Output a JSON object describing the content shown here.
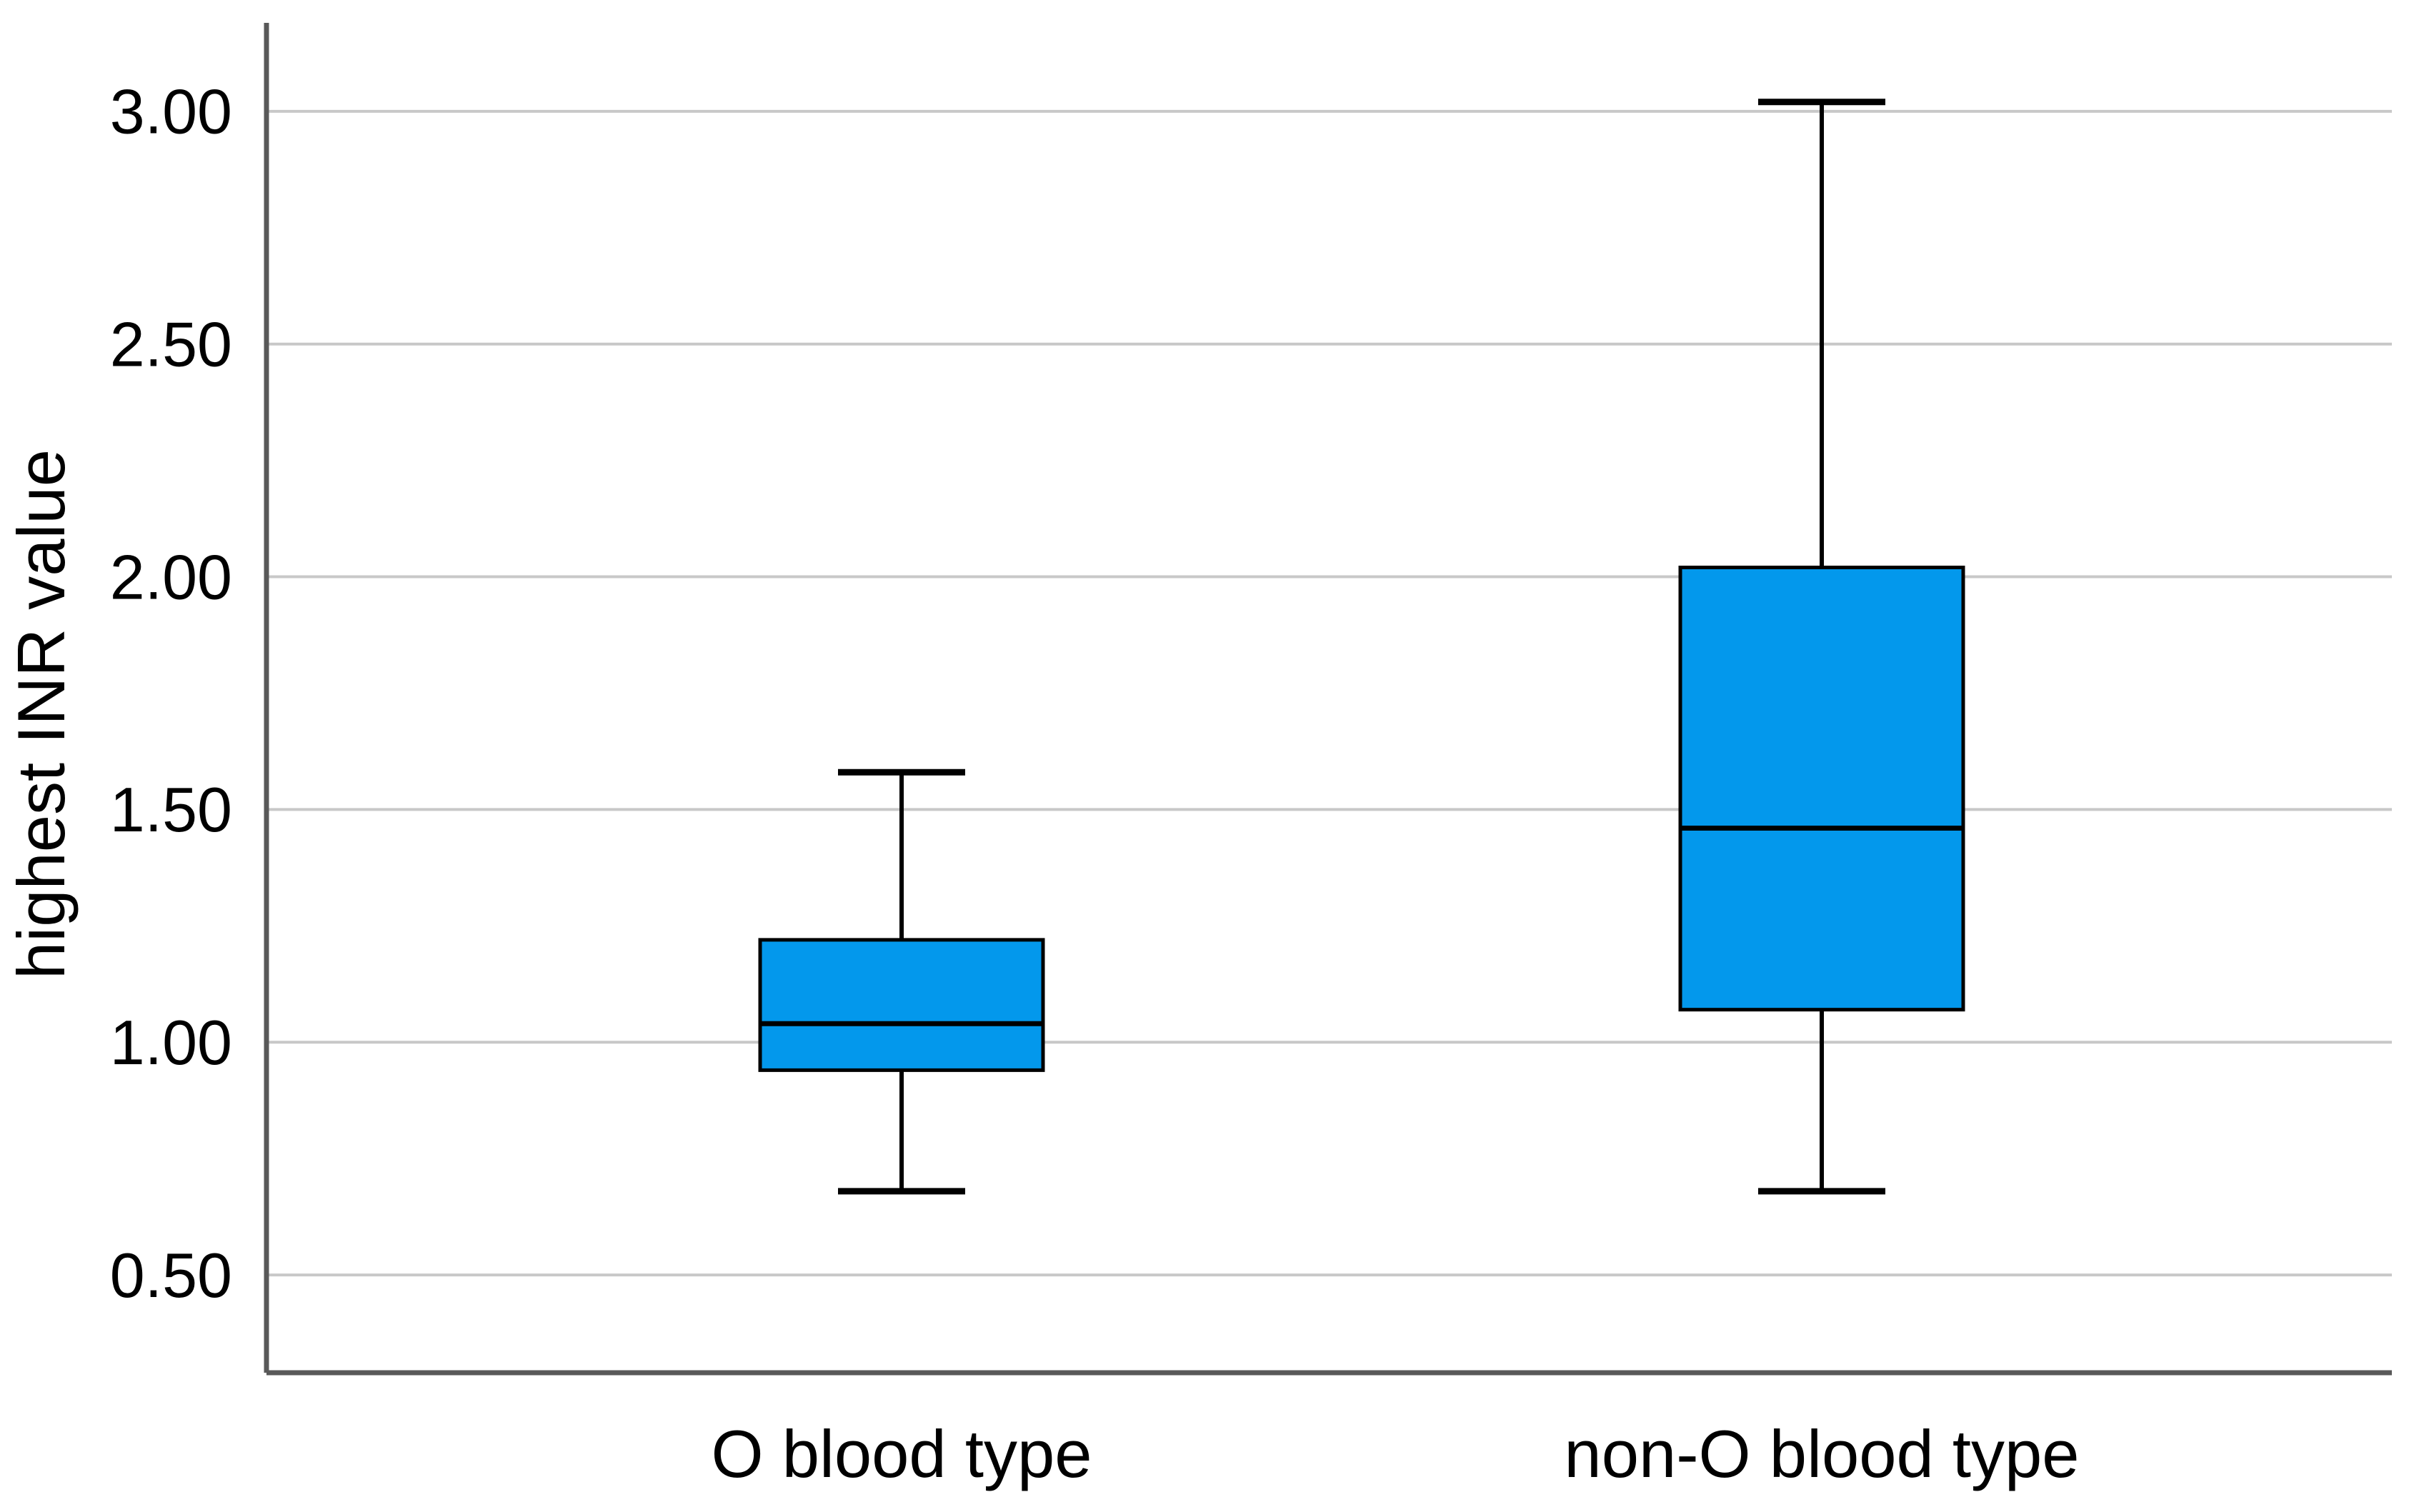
{
  "figure": {
    "background_color": "#ffffff",
    "title": "",
    "y_axis": {
      "title": "highest INR value",
      "tick_labels": [
        "0.50",
        "1.00",
        "1.50",
        "2.00",
        "2.50",
        "3.00"
      ]
    },
    "x_axis": {
      "category_labels": [
        "O blood type",
        "non-O blood type"
      ]
    }
  },
  "chart_data": {
    "type": "boxplot",
    "ylabel": "highest INR value",
    "xlabel": "",
    "title": "",
    "categories": [
      "O blood type",
      "non-O blood type"
    ],
    "series": [
      {
        "name": "O blood type",
        "whisker_low": 0.68,
        "q1": 0.94,
        "median": 1.04,
        "q3": 1.22,
        "whisker_high": 1.58
      },
      {
        "name": "non-O blood type",
        "whisker_low": 0.68,
        "q1": 1.07,
        "median": 1.46,
        "q3": 2.02,
        "whisker_high": 3.02
      }
    ],
    "yticks": [
      {
        "value": 0.5,
        "label": "0.50"
      },
      {
        "value": 1.0,
        "label": "1.00"
      },
      {
        "value": 1.5,
        "label": "1.50"
      },
      {
        "value": 2.0,
        "label": "2.00"
      },
      {
        "value": 2.5,
        "label": "2.50"
      },
      {
        "value": 3.0,
        "label": "3.00"
      }
    ],
    "ylim": [
      0.29,
      3.19
    ],
    "grid": true,
    "legend_position": "none",
    "colors": {
      "box_fill": "#0398ec",
      "box_border": "#000000",
      "median_line": "#000000",
      "whisker": "#000000",
      "gridline": "#c8c8c8",
      "axis_spine": "#595959",
      "text": "#000000",
      "background": "#ffffff"
    }
  }
}
